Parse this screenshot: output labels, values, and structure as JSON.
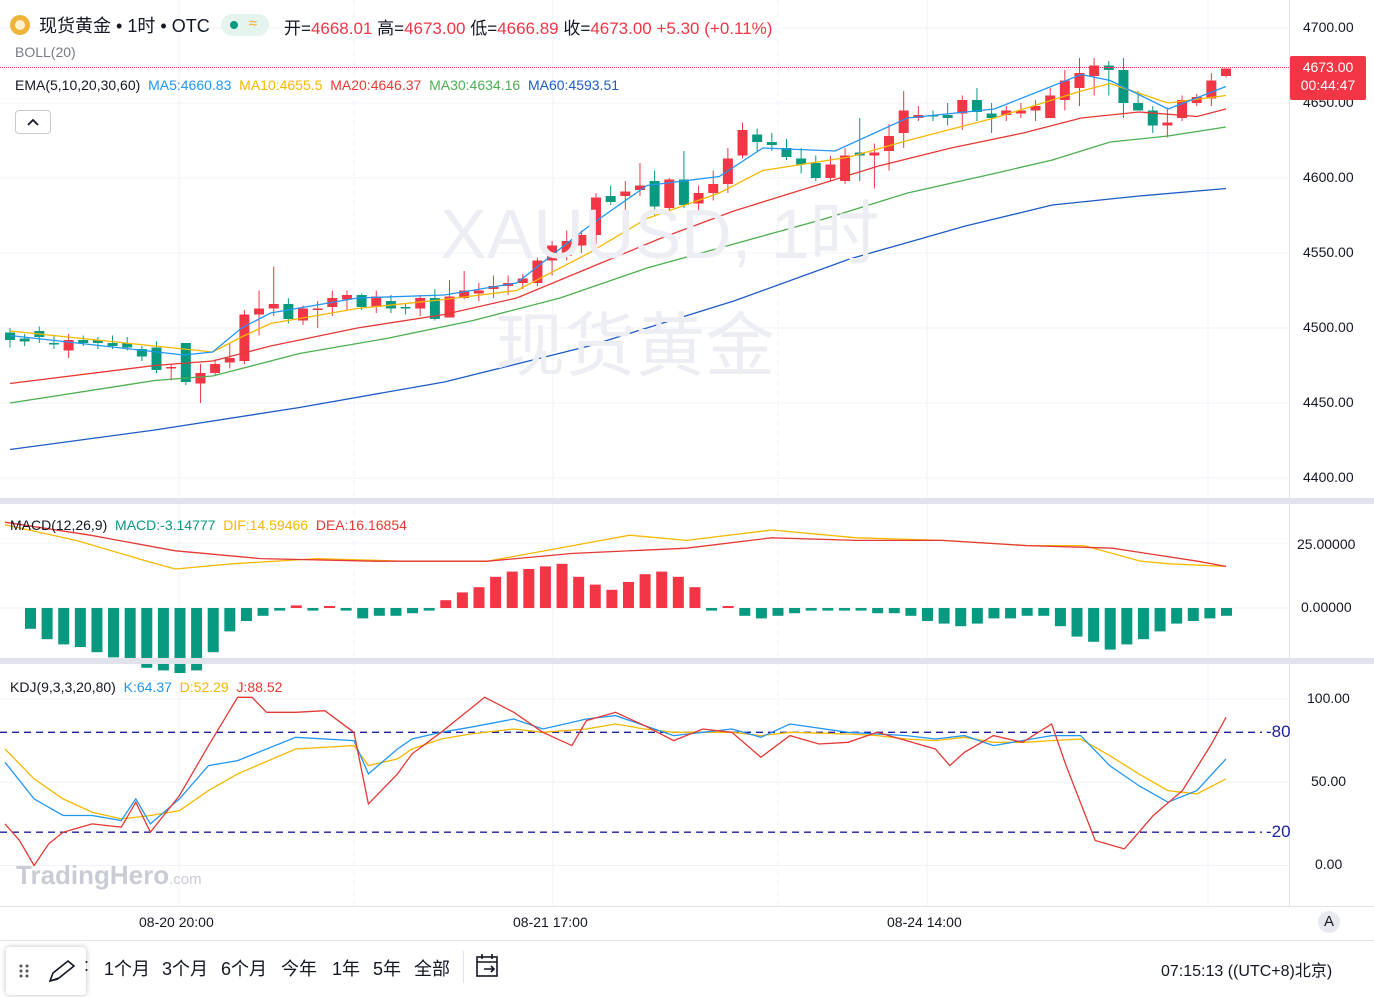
{
  "header": {
    "symbol_name": "现货黄金",
    "interval": "1时",
    "exchange": "OTC",
    "sep": "•",
    "open_label": "开=",
    "open": "4668.01",
    "high_label": "高=",
    "high": "4673.00",
    "low_label": "低=",
    "low": "4666.89",
    "close_label": "收=",
    "close": "4673.00",
    "change": "+5.30 (+0.11%)",
    "boll": "BOLL(20)",
    "ema_label": "EMA(5,10,20,30,60)",
    "ma5": "MA5:4660.83",
    "ma10": "MA10:4655.5",
    "ma20": "MA20:4646.37",
    "ma30": "MA30:4634.16",
    "ma60": "MA60:4593.51",
    "collapse_icon": "chevron-up-icon"
  },
  "watermark": {
    "line1": "XAUUSD, 1时",
    "line2": "现货黄金",
    "brand": "TradingHero",
    "brand_suffix": ".com"
  },
  "price_axis": {
    "ticks": [
      "4700.00",
      "4650.00",
      "4600.00",
      "4550.00",
      "4500.00",
      "4450.00",
      "4400.00"
    ],
    "last_price": "4673.00",
    "countdown": "00:44:47"
  },
  "macd": {
    "label": "MACD(12,26,9)",
    "macd_value": "MACD:-3.14777",
    "dif_value": "DIF:14.59466",
    "dea_value": "DEA:16.16854",
    "ticks": [
      "25.00000",
      "0.00000"
    ]
  },
  "kdj": {
    "label": "KDJ(9,3,3,20,80)",
    "k_value": "K:64.37",
    "d_value": "D:52.29",
    "j_value": "J:88.52",
    "ticks": [
      "100.00",
      "50.00",
      "0.00"
    ],
    "upper_line": "80",
    "lower_line": "20"
  },
  "time_axis": {
    "labels": [
      "08-20 20:00",
      "08-21 17:00",
      "08-24 14:00"
    ],
    "auto_scale": "A"
  },
  "bottom_bar": {
    "ranges": [
      "1个月",
      "3个月",
      "6个月",
      "今年",
      "1年",
      "5年",
      "全部"
    ],
    "clock": "07:15:13 ((UTC+8)北京)",
    "compare_icon": "date-range-icon",
    "drawing_icon": "pencil-icon",
    "grip_icon": "grip-icon"
  },
  "colors": {
    "up": "#f23645",
    "down": "#089981",
    "ma5": "#2196f3",
    "ma10": "#f5b800",
    "ma20": "#e53935",
    "ma30": "#4caf50",
    "ma60": "#1e5bc6",
    "dif": "#f5b800",
    "dea": "#e53935",
    "k": "#2196f3",
    "d": "#f5b800",
    "j": "#e53935"
  },
  "chart_data": {
    "type": "candlestick",
    "y_range": [
      4400,
      4700
    ],
    "x_labels": [
      "08-20 20:00",
      "08-21 17:00",
      "08-24 14:00"
    ],
    "candles": [
      [
        4497,
        4500,
        4487,
        4492
      ],
      [
        4493,
        4496,
        4488,
        4491
      ],
      [
        4498,
        4501,
        4490,
        4494
      ],
      [
        4490,
        4495,
        4486,
        4489
      ],
      [
        4485,
        4496,
        4480,
        4492
      ],
      [
        4492,
        4495,
        4488,
        4490
      ],
      [
        4492,
        4494,
        4486,
        4490
      ],
      [
        4490,
        4495,
        4486,
        4488
      ],
      [
        4490,
        4494,
        4485,
        4487
      ],
      [
        4486,
        4488,
        4478,
        4481
      ],
      [
        4487,
        4491,
        4470,
        4472
      ],
      [
        4473,
        4476,
        4465,
        4474
      ],
      [
        4490,
        4490,
        4462,
        4464
      ],
      [
        4463,
        4476,
        4450,
        4470
      ],
      [
        4470,
        4479,
        4468,
        4476
      ],
      [
        4477,
        4490,
        4473,
        4480
      ],
      [
        4478,
        4512,
        4476,
        4509
      ],
      [
        4509,
        4525,
        4495,
        4513
      ],
      [
        4513,
        4541,
        4508,
        4516
      ],
      [
        4516,
        4520,
        4503,
        4506
      ],
      [
        4505,
        4515,
        4502,
        4513
      ],
      [
        4512,
        4518,
        4500,
        4513
      ],
      [
        4514,
        4525,
        4508,
        4520
      ],
      [
        4519,
        4525,
        4512,
        4522
      ],
      [
        4522,
        4523,
        4512,
        4514
      ],
      [
        4514,
        4525,
        4510,
        4521
      ],
      [
        4518,
        4522,
        4510,
        4513
      ],
      [
        4514,
        4516,
        4509,
        4513
      ],
      [
        4513,
        4522,
        4508,
        4520
      ],
      [
        4520,
        4526,
        4505,
        4506
      ],
      [
        4507,
        4532,
        4507,
        4521
      ],
      [
        4520,
        4538,
        4519,
        4525
      ],
      [
        4523,
        4530,
        4518,
        4525
      ],
      [
        4526,
        4535,
        4520,
        4528
      ],
      [
        4528,
        4535,
        4522,
        4530
      ],
      [
        4530,
        4536,
        4526,
        4533
      ],
      [
        4530,
        4547,
        4528,
        4545
      ],
      [
        4545,
        4558,
        4535,
        4555
      ],
      [
        4548,
        4565,
        4545,
        4558
      ],
      [
        4555,
        4565,
        4550,
        4562
      ],
      [
        4562,
        4590,
        4553,
        4587
      ],
      [
        4588,
        4595,
        4582,
        4584
      ],
      [
        4588,
        4598,
        4578,
        4591
      ],
      [
        4592,
        4610,
        4588,
        4595
      ],
      [
        4598,
        4605,
        4575,
        4581
      ],
      [
        4580,
        4600,
        4577,
        4599
      ],
      [
        4599,
        4618,
        4580,
        4582
      ],
      [
        4583,
        4595,
        4578,
        4590
      ],
      [
        4590,
        4605,
        4585,
        4596
      ],
      [
        4596,
        4620,
        4590,
        4613
      ],
      [
        4615,
        4637,
        4613,
        4632
      ],
      [
        4629,
        4633,
        4618,
        4624
      ],
      [
        4624,
        4630,
        4618,
        4622
      ],
      [
        4620,
        4626,
        4612,
        4614
      ],
      [
        4613,
        4620,
        4603,
        4609
      ],
      [
        4610,
        4615,
        4598,
        4600
      ],
      [
        4600,
        4615,
        4598,
        4609
      ],
      [
        4598,
        4620,
        4596,
        4615
      ],
      [
        4617,
        4640,
        4598,
        4615
      ],
      [
        4615,
        4623,
        4593,
        4617
      ],
      [
        4618,
        4636,
        4605,
        4628
      ],
      [
        4630,
        4658,
        4620,
        4645
      ],
      [
        4640,
        4648,
        4638,
        4642
      ],
      [
        4642,
        4645,
        4638,
        4641
      ],
      [
        4642,
        4650,
        4635,
        4640
      ],
      [
        4643,
        4655,
        4632,
        4652
      ],
      [
        4652,
        4660,
        4638,
        4644
      ],
      [
        4643,
        4650,
        4630,
        4640
      ],
      [
        4642,
        4648,
        4638,
        4645
      ],
      [
        4643,
        4650,
        4640,
        4645
      ],
      [
        4645,
        4652,
        4638,
        4648
      ],
      [
        4640,
        4660,
        4640,
        4655
      ],
      [
        4652,
        4672,
        4645,
        4665
      ],
      [
        4660,
        4680,
        4648,
        4670
      ],
      [
        4668,
        4680,
        4655,
        4675
      ],
      [
        4675,
        4678,
        4655,
        4672
      ],
      [
        4672,
        4680,
        4640,
        4650
      ],
      [
        4650,
        4658,
        4645,
        4645
      ],
      [
        4645,
        4648,
        4630,
        4635
      ],
      [
        4635,
        4647,
        4627,
        4637
      ],
      [
        4640,
        4655,
        4638,
        4652
      ],
      [
        4650,
        4656,
        4648,
        4654
      ],
      [
        4653,
        4670,
        4648,
        4665
      ],
      [
        4668,
        4673,
        4667,
        4673
      ]
    ],
    "ma5": [
      [
        0,
        4495
      ],
      [
        12,
        4482
      ],
      [
        14,
        4484
      ],
      [
        16,
        4500
      ],
      [
        18,
        4510
      ],
      [
        24,
        4520
      ],
      [
        30,
        4522
      ],
      [
        35,
        4530
      ],
      [
        40,
        4568
      ],
      [
        44,
        4595
      ],
      [
        49,
        4601
      ],
      [
        52,
        4620
      ],
      [
        57,
        4618
      ],
      [
        62,
        4640
      ],
      [
        68,
        4646
      ],
      [
        74,
        4669
      ],
      [
        76,
        4665
      ],
      [
        80,
        4646
      ],
      [
        84,
        4661
      ]
    ],
    "ma10": [
      [
        0,
        4498
      ],
      [
        12,
        4486
      ],
      [
        14,
        4484
      ],
      [
        16,
        4494
      ],
      [
        18,
        4503
      ],
      [
        24,
        4513
      ],
      [
        30,
        4519
      ],
      [
        35,
        4525
      ],
      [
        40,
        4550
      ],
      [
        44,
        4573
      ],
      [
        49,
        4590
      ],
      [
        52,
        4605
      ],
      [
        58,
        4614
      ],
      [
        62,
        4625
      ],
      [
        68,
        4640
      ],
      [
        74,
        4658
      ],
      [
        76,
        4663
      ],
      [
        80,
        4650
      ],
      [
        84,
        4655
      ]
    ],
    "ma20": [
      [
        0,
        4463
      ],
      [
        10,
        4475
      ],
      [
        14,
        4478
      ],
      [
        18,
        4488
      ],
      [
        24,
        4500
      ],
      [
        30,
        4509
      ],
      [
        35,
        4520
      ],
      [
        40,
        4540
      ],
      [
        45,
        4560
      ],
      [
        50,
        4578
      ],
      [
        55,
        4593
      ],
      [
        60,
        4608
      ],
      [
        65,
        4620
      ],
      [
        70,
        4630
      ],
      [
        74,
        4640
      ],
      [
        78,
        4644
      ],
      [
        82,
        4641
      ],
      [
        84,
        4646
      ]
    ],
    "ma30": [
      [
        0,
        4450
      ],
      [
        10,
        4465
      ],
      [
        14,
        4468
      ],
      [
        20,
        4483
      ],
      [
        26,
        4493
      ],
      [
        32,
        4505
      ],
      [
        38,
        4520
      ],
      [
        44,
        4540
      ],
      [
        50,
        4556
      ],
      [
        56,
        4572
      ],
      [
        62,
        4590
      ],
      [
        68,
        4603
      ],
      [
        72,
        4612
      ],
      [
        76,
        4624
      ],
      [
        80,
        4628
      ],
      [
        84,
        4634
      ]
    ],
    "ma60": [
      [
        0,
        4419
      ],
      [
        10,
        4432
      ],
      [
        20,
        4447
      ],
      [
        30,
        4464
      ],
      [
        40,
        4488
      ],
      [
        50,
        4518
      ],
      [
        58,
        4546
      ],
      [
        66,
        4568
      ],
      [
        72,
        4582
      ],
      [
        78,
        4588
      ],
      [
        84,
        4593
      ]
    ],
    "macd_hist": [
      -8,
      -12,
      -14,
      -15,
      -17,
      -19,
      -21,
      -23,
      -24,
      -25,
      -24,
      -17,
      -9,
      -5,
      -3,
      -1,
      1,
      -1,
      0,
      -1,
      -4,
      -3,
      -3,
      -2,
      -1,
      3,
      6,
      8,
      12,
      14,
      15,
      16,
      17,
      12,
      9,
      7,
      10,
      13,
      14,
      12,
      8,
      -1,
      0,
      -3,
      -4,
      -3,
      -2,
      -1,
      -1,
      -1,
      -1,
      -2,
      -2,
      -3,
      -5,
      -6,
      -7,
      -6,
      -4,
      -4,
      -3,
      -3,
      -7,
      -11,
      -13,
      -16,
      -14,
      -12,
      -9,
      -6,
      -5,
      -4,
      -3
    ],
    "dif": [
      [
        0,
        32
      ],
      [
        5,
        26
      ],
      [
        10,
        18
      ],
      [
        12,
        15
      ],
      [
        16,
        17
      ],
      [
        22,
        19
      ],
      [
        28,
        18
      ],
      [
        34,
        18
      ],
      [
        40,
        24
      ],
      [
        44,
        28
      ],
      [
        48,
        26
      ],
      [
        54,
        30
      ],
      [
        60,
        27
      ],
      [
        66,
        26
      ],
      [
        72,
        24
      ],
      [
        76,
        24
      ],
      [
        80,
        18
      ],
      [
        82,
        17
      ],
      [
        86,
        16
      ]
    ],
    "dea": [
      [
        0,
        33
      ],
      [
        6,
        28
      ],
      [
        12,
        22
      ],
      [
        18,
        19
      ],
      [
        26,
        18
      ],
      [
        34,
        18
      ],
      [
        40,
        21
      ],
      [
        48,
        23
      ],
      [
        54,
        27
      ],
      [
        60,
        26
      ],
      [
        66,
        26
      ],
      [
        72,
        24
      ],
      [
        78,
        23
      ],
      [
        84,
        18
      ],
      [
        86,
        16
      ]
    ]
  }
}
